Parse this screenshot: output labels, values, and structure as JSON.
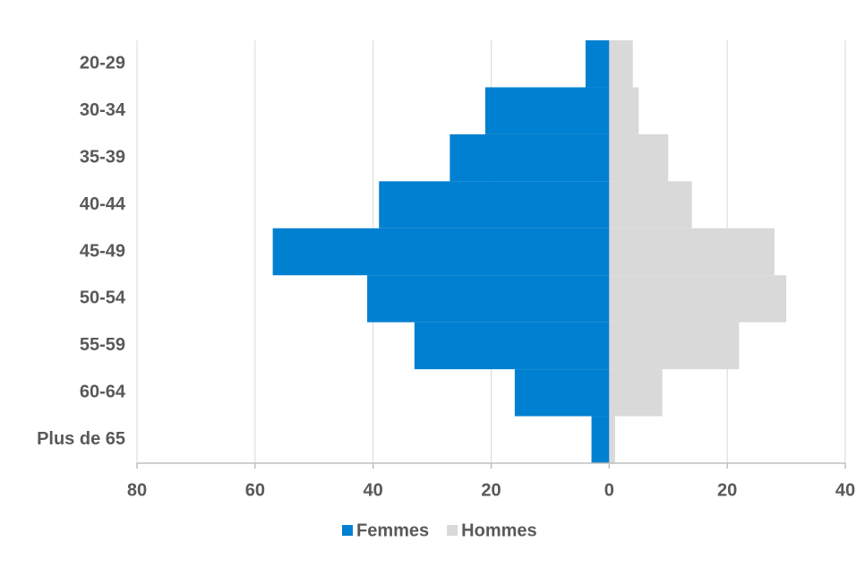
{
  "chart_data": {
    "type": "bar",
    "orientation": "horizontal",
    "stacked": true,
    "categories": [
      "20-29",
      "30-34",
      "35-39",
      "40-44",
      "45-49",
      "50-54",
      "55-59",
      "60-64",
      "Plus de 65"
    ],
    "series": [
      {
        "name": "Femmes",
        "color": "#0080d0",
        "values": [
          -4,
          -21,
          -27,
          -39,
          -57,
          -41,
          -33,
          -16,
          -3
        ]
      },
      {
        "name": "Hommes",
        "color": "#d9d9d9",
        "values": [
          4,
          5,
          10,
          14,
          28,
          30,
          22,
          9,
          1
        ]
      }
    ],
    "xlim": [
      -80,
      40
    ],
    "xticks": [
      {
        "value": -80,
        "label": "80"
      },
      {
        "value": -60,
        "label": "60"
      },
      {
        "value": -40,
        "label": "40"
      },
      {
        "value": -20,
        "label": "20"
      },
      0,
      20,
      40
    ],
    "grid": true,
    "legend": "bottom"
  }
}
